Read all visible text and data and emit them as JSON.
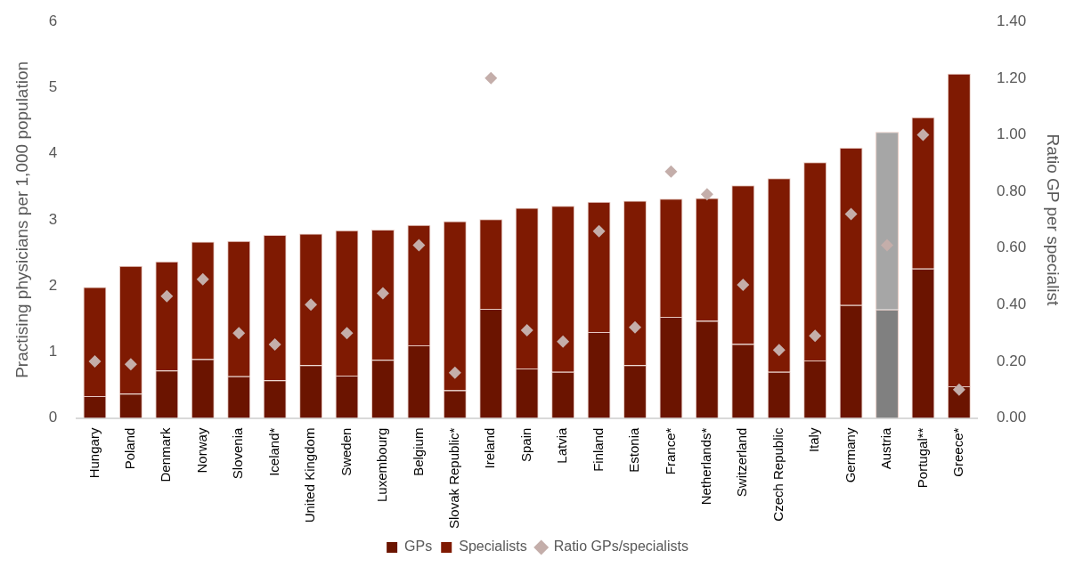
{
  "chart_data": {
    "type": "bar",
    "stacked": true,
    "ylabel": "Practising physicians per 1,000 population",
    "y2label": "Ratio GP per specialist",
    "categories": [
      "Hungary",
      "Poland",
      "Denmark",
      "Norway",
      "Slovenia",
      "Iceland*",
      "United Kingdom",
      "Sweden",
      "Luxembourg",
      "Belgium",
      "Slovak Republic*",
      "Ireland",
      "Spain",
      "Latvia",
      "Finland",
      "Estonia",
      "France*",
      "Netherlands*",
      "Switzerland",
      "Czech Republic",
      "Italy",
      "Germany",
      "Austria",
      "Portugal**",
      "Greece*"
    ],
    "series": [
      {
        "name": "GPs",
        "color": "#6b1400",
        "colors": [
          "#6b1400",
          "#6b1400",
          "#6b1400",
          "#6b1400",
          "#6b1400",
          "#6b1400",
          "#6b1400",
          "#6b1400",
          "#6b1400",
          "#6b1400",
          "#6b1400",
          "#6b1400",
          "#6b1400",
          "#6b1400",
          "#6b1400",
          "#6b1400",
          "#6b1400",
          "#6b1400",
          "#6b1400",
          "#6b1400",
          "#6b1400",
          "#6b1400",
          "#808080",
          "#6b1400",
          "#6b1400"
        ],
        "values": [
          0.33,
          0.37,
          0.72,
          0.89,
          0.63,
          0.57,
          0.8,
          0.64,
          0.88,
          1.1,
          0.42,
          1.65,
          0.75,
          0.7,
          1.3,
          0.8,
          1.53,
          1.47,
          1.12,
          0.7,
          0.87,
          1.71,
          1.64,
          2.26,
          0.48
        ]
      },
      {
        "name": "Specialists",
        "color": "#7f1a02",
        "colors": [
          "#7f1a02",
          "#7f1a02",
          "#7f1a02",
          "#7f1a02",
          "#7f1a02",
          "#7f1a02",
          "#7f1a02",
          "#7f1a02",
          "#7f1a02",
          "#7f1a02",
          "#7f1a02",
          "#7f1a02",
          "#7f1a02",
          "#7f1a02",
          "#7f1a02",
          "#7f1a02",
          "#7f1a02",
          "#7f1a02",
          "#7f1a02",
          "#7f1a02",
          "#7f1a02",
          "#7f1a02",
          "#a6a6a6",
          "#7f1a02",
          "#7f1a02"
        ],
        "values": [
          1.65,
          1.93,
          1.65,
          1.78,
          2.05,
          2.2,
          1.99,
          2.2,
          1.97,
          1.82,
          2.56,
          1.36,
          2.43,
          2.51,
          1.97,
          2.49,
          1.79,
          1.86,
          2.4,
          2.93,
          3.0,
          2.38,
          2.69,
          2.29,
          4.73
        ]
      },
      {
        "name": "Ratio GPs/specialists",
        "type": "scatter",
        "axis": "y2",
        "marker": "diamond",
        "color": "#c4aeaa",
        "x": [
          "Hungary",
          "Poland",
          "Denmark",
          "Norway",
          "Slovenia",
          "Iceland*",
          "United Kingdom",
          "Sweden",
          "Luxembourg",
          "Belgium",
          "Slovak Republic*",
          "Ireland",
          "Spain",
          "Latvia",
          "Finland",
          "Estonia",
          "France*",
          "Netherlands*",
          "Switzerland",
          "Czech Republic",
          "Italy",
          "Germany",
          "Austria",
          "Portugal**",
          "Greece*"
        ],
        "values": [
          0.2,
          0.19,
          0.43,
          0.49,
          0.3,
          0.26,
          0.4,
          0.3,
          0.44,
          0.61,
          0.16,
          1.2,
          0.31,
          0.27,
          0.66,
          0.32,
          0.87,
          0.79,
          0.47,
          0.24,
          0.29,
          0.72,
          0.61,
          1.0,
          0.1
        ]
      }
    ],
    "ylim": [
      0,
      6
    ],
    "yticks": [
      0,
      1,
      2,
      3,
      4,
      5,
      6
    ],
    "y2lim": [
      0,
      1.4
    ],
    "y2ticks": [
      {
        "value": 0,
        "label": "0.00"
      },
      {
        "value": 0.2,
        "label": "0.20"
      },
      {
        "value": 0.4,
        "label": "0.40"
      },
      {
        "value": 0.6,
        "label": "0.60"
      },
      {
        "value": 0.8,
        "label": "0.80"
      },
      {
        "value": 1,
        "label": "1.00"
      },
      {
        "value": 1.2,
        "label": "1.20"
      },
      {
        "value": 1.4,
        "label": "1.40"
      }
    ],
    "grid": false,
    "legend": "bottom"
  }
}
